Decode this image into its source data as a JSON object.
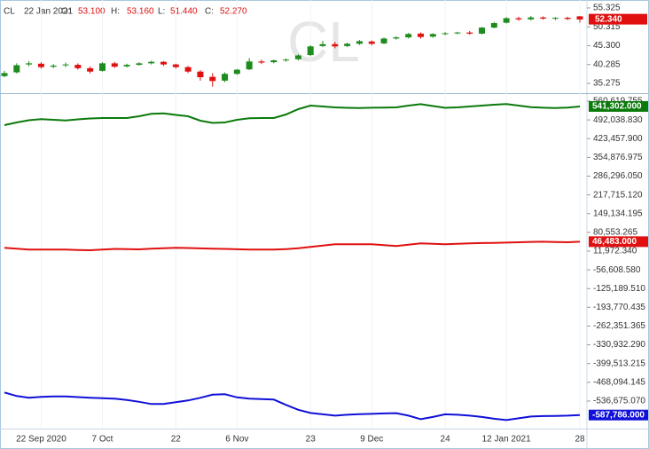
{
  "chart_data": [
    {
      "type": "candlestick",
      "header": {
        "symbol": "CL",
        "date": "22 Jan 2021",
        "items": [
          {
            "key": "O:",
            "text": "53.100"
          },
          {
            "key": "H:",
            "text": "53.160"
          },
          {
            "key": "L:",
            "text": "51.440"
          },
          {
            "key": "C:",
            "text": "52.270"
          }
        ]
      },
      "watermark": "CL",
      "up_color": "#1e8b1e",
      "down_color": "#e01010",
      "open": [
        37.2,
        38.2,
        40.3,
        40.5,
        39.7,
        40.1,
        40.2,
        39.3,
        38.6,
        40.6,
        39.8,
        40.2,
        40.6,
        41.0,
        40.3,
        39.6,
        38.4,
        37.0,
        36.0,
        37.8,
        39.0,
        41.1,
        40.9,
        41.4,
        41.7,
        42.8,
        45.2,
        45.7,
        45.2,
        45.8,
        46.4,
        45.9,
        47.2,
        47.5,
        48.5,
        47.7,
        48.4,
        48.6,
        48.8,
        48.5,
        50.1,
        51.4,
        52.6,
        52.3,
        52.8,
        52.5,
        52.7,
        53.1
      ],
      "high": [
        38.6,
        40.6,
        41.2,
        40.9,
        40.4,
        40.8,
        40.6,
        39.8,
        40.9,
        41.0,
        40.5,
        40.9,
        41.3,
        41.2,
        40.5,
        39.9,
        38.8,
        38.0,
        38.2,
        39.1,
        42.0,
        41.6,
        41.6,
        41.9,
        43.0,
        45.4,
        46.6,
        46.3,
        46.1,
        46.8,
        46.7,
        47.5,
        47.8,
        48.7,
        48.8,
        48.6,
        48.9,
        49.0,
        49.2,
        50.3,
        51.6,
        52.9,
        53.0,
        53.2,
        53.1,
        52.9,
        53.0,
        53.16
      ],
      "low": [
        36.9,
        37.9,
        39.8,
        39.2,
        39.3,
        39.6,
        38.9,
        37.9,
        38.4,
        39.4,
        39.5,
        40.0,
        40.3,
        39.9,
        39.2,
        38.0,
        36.0,
        34.4,
        35.6,
        37.5,
        38.8,
        40.4,
        40.6,
        41.0,
        41.4,
        42.5,
        44.9,
        44.6,
        44.9,
        45.5,
        45.4,
        45.7,
        46.9,
        47.2,
        47.2,
        47.4,
        48.1,
        48.3,
        48.2,
        48.3,
        49.9,
        51.2,
        51.9,
        52.0,
        52.2,
        52.1,
        52.1,
        51.44
      ],
      "close": [
        38.0,
        40.1,
        40.6,
        39.6,
        40.0,
        40.3,
        39.3,
        38.4,
        40.6,
        39.7,
        40.2,
        40.6,
        41.0,
        40.3,
        39.6,
        38.4,
        36.9,
        35.9,
        37.8,
        38.9,
        41.1,
        40.8,
        41.4,
        41.6,
        42.7,
        45.1,
        45.7,
        45.1,
        45.8,
        46.5,
        45.8,
        47.2,
        47.5,
        48.4,
        47.6,
        48.4,
        48.6,
        48.8,
        48.5,
        50.1,
        51.3,
        52.6,
        52.3,
        52.8,
        52.5,
        52.7,
        52.4,
        52.27
      ],
      "ylim": [
        32.9,
        56.5
      ],
      "yticks": [
        {
          "value": 55.325,
          "label": "55.325"
        },
        {
          "value": 50.315,
          "label": "50.315"
        },
        {
          "value": 45.3,
          "label": "45.300"
        },
        {
          "value": 40.285,
          "label": "40.285"
        },
        {
          "value": 35.275,
          "label": "35.275"
        }
      ],
      "last_price": {
        "value": 52.34,
        "label": "52.340"
      }
    },
    {
      "type": "line",
      "categories": [
        null,
        null,
        null,
        "22 Sep 2020",
        null,
        null,
        null,
        null,
        "7 Oct",
        null,
        null,
        null,
        null,
        null,
        "22",
        null,
        null,
        null,
        null,
        "6 Nov",
        null,
        null,
        null,
        null,
        null,
        "23",
        null,
        null,
        null,
        null,
        "9 Dec",
        null,
        null,
        null,
        null,
        null,
        "24",
        null,
        null,
        null,
        null,
        "12 Jan 2021",
        null,
        null,
        null,
        null,
        null,
        "28"
      ],
      "grid": true,
      "series": [
        {
          "color": "#0a7a0a",
          "values": [
            472870,
            482620,
            490745,
            494645,
            492370,
            489770,
            493995,
            497245,
            498870,
            498870,
            498870,
            505370,
            514145,
            516095,
            510245,
            505370,
            489120,
            480995,
            482620,
            492370,
            497895,
            498870,
            498870,
            511870,
            531370,
            544370,
            541120,
            537870,
            536245,
            535270,
            536570,
            537220,
            537870,
            544370,
            549570,
            542745,
            536245,
            537870,
            541120,
            544370,
            547620,
            550220,
            544370,
            538520,
            536570,
            535595,
            537000,
            541302
          ],
          "value_labels": [
            null,
            null,
            null,
            null,
            null,
            null,
            null,
            null,
            null,
            null,
            null,
            null,
            null,
            null,
            null,
            null,
            null,
            null,
            null,
            null,
            null,
            null,
            null,
            null,
            null,
            null,
            null,
            null,
            null,
            null,
            null,
            null,
            null,
            null,
            null,
            null,
            null,
            null,
            null,
            null,
            null,
            null,
            null,
            null,
            null,
            null,
            null,
            "541,302.000"
          ]
        },
        {
          "color": "#e01010",
          "values": [
            24370,
            21120,
            17870,
            17870,
            17870,
            17870,
            16245,
            15270,
            17870,
            20145,
            19495,
            18520,
            21120,
            22745,
            24370,
            23395,
            22095,
            21120,
            20145,
            18845,
            17870,
            17870,
            17870,
            19495,
            22745,
            27620,
            32495,
            37370,
            37370,
            37370,
            37370,
            34120,
            30870,
            35745,
            40620,
            38995,
            37370,
            38995,
            40620,
            41595,
            42245,
            43220,
            44520,
            45820,
            46470,
            45495,
            44520,
            46483
          ],
          "value_labels": [
            null,
            null,
            null,
            null,
            null,
            null,
            null,
            null,
            null,
            null,
            null,
            null,
            null,
            null,
            null,
            null,
            null,
            null,
            null,
            null,
            null,
            null,
            null,
            null,
            null,
            null,
            null,
            null,
            null,
            null,
            null,
            null,
            null,
            null,
            null,
            null,
            null,
            null,
            null,
            null,
            null,
            null,
            null,
            null,
            null,
            null,
            null,
            "46,483.000"
          ]
        },
        {
          "color": "#1010d8",
          "values": [
            -505380,
            -518380,
            -524880,
            -521630,
            -519680,
            -520005,
            -522280,
            -524880,
            -526505,
            -528130,
            -533005,
            -539505,
            -547630,
            -547630,
            -541130,
            -534630,
            -524880,
            -513505,
            -511880,
            -523255,
            -528130,
            -529755,
            -531380,
            -550880,
            -568755,
            -580130,
            -585005,
            -589880,
            -586630,
            -584355,
            -583380,
            -581755,
            -580780,
            -589880,
            -602880,
            -594755,
            -585005,
            -586630,
            -589880,
            -594755,
            -601255,
            -606130,
            -599630,
            -593130,
            -591505,
            -590855,
            -589880,
            -587786
          ],
          "value_labels": [
            null,
            null,
            null,
            null,
            null,
            null,
            null,
            null,
            null,
            null,
            null,
            null,
            null,
            null,
            null,
            null,
            null,
            null,
            null,
            null,
            null,
            null,
            null,
            null,
            null,
            null,
            null,
            null,
            null,
            null,
            null,
            null,
            null,
            null,
            null,
            null,
            null,
            null,
            null,
            null,
            null,
            null,
            null,
            null,
            null,
            null,
            null,
            "-587,786.000"
          ]
        }
      ],
      "ylim": [
        -637430,
        586620
      ],
      "yticks": [
        {
          "value": 560619.755,
          "label": "560,619.755"
        },
        {
          "value": 492038.83,
          "label": "492,038.830"
        },
        {
          "value": 423457.9,
          "label": "423,457.900"
        },
        {
          "value": 354876.975,
          "label": "354,876.975"
        },
        {
          "value": 286296.05,
          "label": "286,296.050"
        },
        {
          "value": 217715.12,
          "label": "217,715.120"
        },
        {
          "value": 149134.195,
          "label": "149,134.195"
        },
        {
          "value": 80553.265,
          "label": "80,553.265"
        },
        {
          "value": 11972.34,
          "label": "11,972.340"
        },
        {
          "value": -56608.58,
          "label": "-56,608.580"
        },
        {
          "value": -125189.51,
          "label": "-125,189.510"
        },
        {
          "value": -193770.435,
          "label": "-193,770.435"
        },
        {
          "value": -262351.365,
          "label": "-262,351.365"
        },
        {
          "value": -330932.29,
          "label": "-330,932.290"
        },
        {
          "value": -399513.215,
          "label": "-399,513.215"
        },
        {
          "value": -468094.145,
          "label": "-468,094.145"
        },
        {
          "value": -536675.07,
          "label": "-536,675.070"
        }
      ]
    }
  ]
}
